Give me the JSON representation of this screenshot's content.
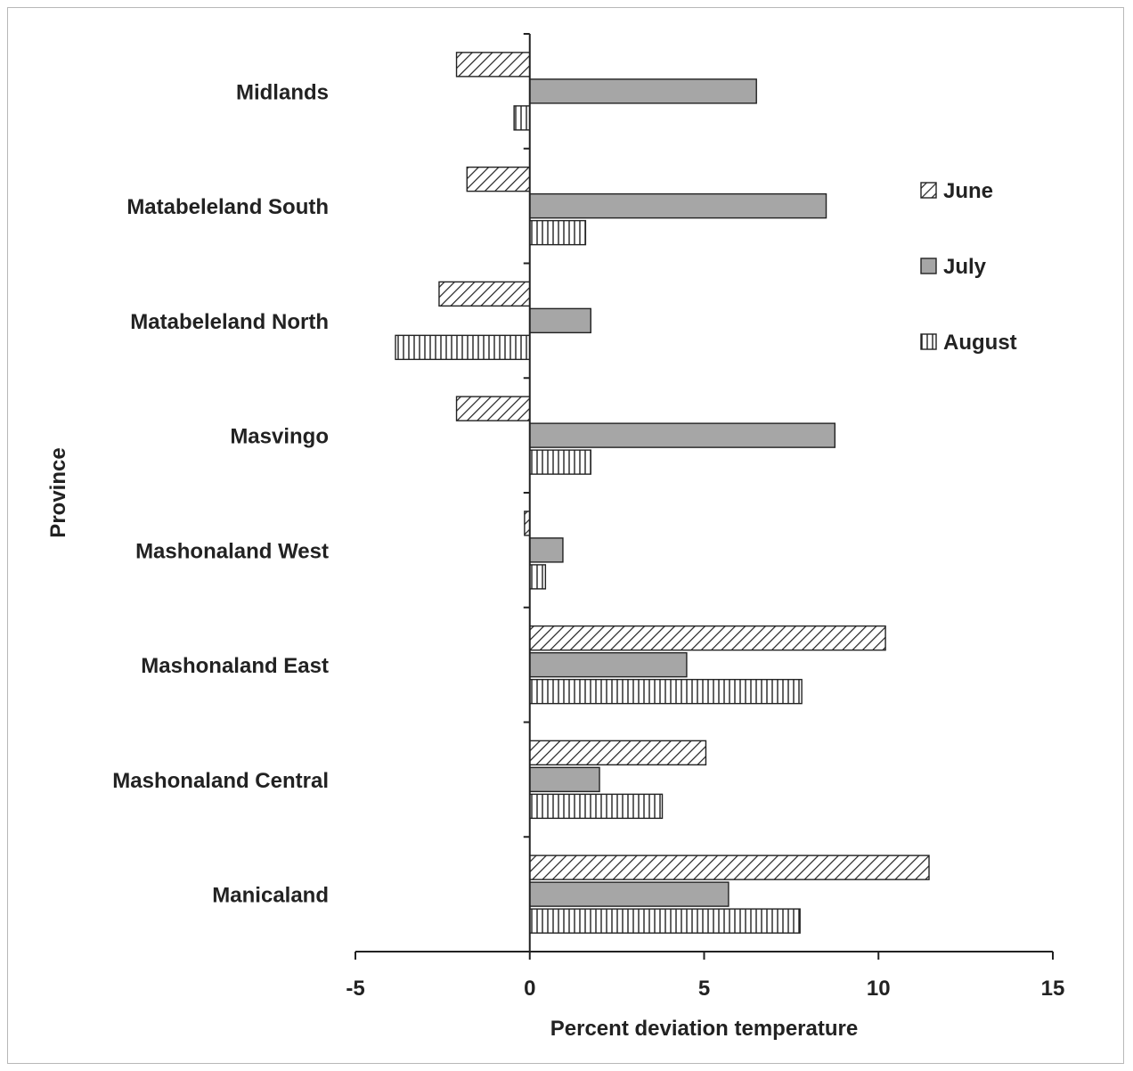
{
  "chart_data": {
    "type": "bar",
    "orientation": "horizontal",
    "title": "",
    "xlabel": "Percent deviation temperature",
    "ylabel": "Province",
    "xlim": [
      -5,
      15
    ],
    "xticks": [
      -5,
      0,
      5,
      10,
      15
    ],
    "categories": [
      "Midlands",
      "Matabeleland South",
      "Matabeleland North",
      "Masvingo",
      "Mashonaland West",
      "Mashonaland East",
      "Mashonaland Central",
      "Manicaland"
    ],
    "series": [
      {
        "name": "June",
        "pattern": "diagonal",
        "values": [
          -2.1,
          -1.8,
          -2.6,
          -2.1,
          -0.15,
          10.2,
          5.05,
          11.45
        ]
      },
      {
        "name": "July",
        "pattern": "solid",
        "values": [
          6.5,
          8.5,
          1.75,
          8.75,
          0.95,
          4.5,
          2.0,
          5.7
        ]
      },
      {
        "name": "August",
        "pattern": "vertical",
        "values": [
          -0.45,
          1.6,
          -3.85,
          1.75,
          0.45,
          7.8,
          3.8,
          7.75
        ]
      }
    ],
    "legend": {
      "position": "right",
      "entries": [
        "June",
        "July",
        "August"
      ]
    },
    "grid": false,
    "colors": {
      "july_fill": "#a6a6a6",
      "bar_stroke": "#222222",
      "pattern_ink": "#222222"
    }
  }
}
